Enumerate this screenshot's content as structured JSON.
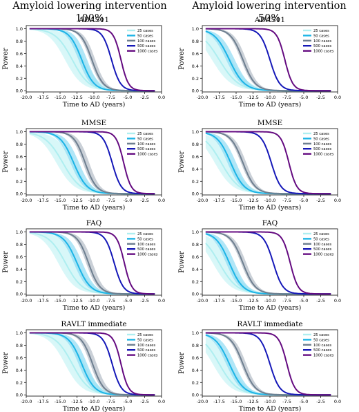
{
  "columns": [
    {
      "title": "Amyloid lowering intervention 100%"
    },
    {
      "title": "Amyloid lowering intervention 50%"
    }
  ],
  "series_styles": [
    {
      "name": "25 cases",
      "color": "#aeeef0",
      "band": "#c8f3f5"
    },
    {
      "name": "50 cases",
      "color": "#1cb4e6",
      "band": "#8fdcf3"
    },
    {
      "name": "100 cases",
      "color": "#6e7f90",
      "band": "#b3bcc6"
    },
    {
      "name": "500 cases",
      "color": "#1518b8",
      "band": "#b8b9ec"
    },
    {
      "name": "1000 cases",
      "color": "#640a80",
      "band": "#d6b8e0"
    }
  ],
  "chart_data": [
    {
      "type": "line",
      "column": "Amyloid lowering intervention 100%",
      "title": "ADAS11",
      "xlabel": "Time to AD (years)",
      "ylabel": "Power",
      "xlim": [
        -20,
        0
      ],
      "ylim": [
        0,
        1
      ],
      "xticks": [
        "-20.0",
        "-17.5",
        "-15.0",
        "-12.5",
        "-10.0",
        "-7.5",
        "-5.0",
        "-2.5",
        "0.0"
      ],
      "yticks": [
        "0.0",
        "0.2",
        "0.4",
        "0.6",
        "0.8",
        "1.0"
      ],
      "legend": "top-right",
      "x_start": -19.5,
      "x_end": -1,
      "series": [
        {
          "name": "25 cases",
          "mid_x": -13.2,
          "steepness": 0.8,
          "band_shift": 1.8
        },
        {
          "name": "50 cases",
          "mid_x": -11.8,
          "steepness": 1.1,
          "band_shift": 0.8
        },
        {
          "name": "100 cases",
          "mid_x": -10.3,
          "steepness": 1.2,
          "band_shift": 0.5
        },
        {
          "name": "500 cases",
          "mid_x": -7.4,
          "steepness": 1.5,
          "band_shift": 0
        },
        {
          "name": "1000 cases",
          "mid_x": -6.0,
          "steepness": 1.8,
          "band_shift": 0
        }
      ]
    },
    {
      "type": "line",
      "column": "Amyloid lowering intervention 50%",
      "title": "ADAS11",
      "xlabel": "Time to AD (years)",
      "ylabel": "Power",
      "xlim": [
        -20,
        0
      ],
      "ylim": [
        0,
        1
      ],
      "xticks": [
        "-20.0",
        "-17.5",
        "-15.0",
        "-12.5",
        "-10.0",
        "-7.5",
        "-5.0",
        "-2.5",
        "0.0"
      ],
      "yticks": [
        "0.0",
        "0.2",
        "0.4",
        "0.6",
        "0.8",
        "1.0"
      ],
      "legend": "top-right",
      "x_start": -19.5,
      "x_end": -1,
      "series": [
        {
          "name": "25 cases",
          "mid_x": -17.5,
          "steepness": 0.7,
          "band_shift": 1.8
        },
        {
          "name": "50 cases",
          "mid_x": -16.0,
          "steepness": 0.9,
          "band_shift": 0.8
        },
        {
          "name": "100 cases",
          "mid_x": -14.0,
          "steepness": 1.1,
          "band_shift": 0.5
        },
        {
          "name": "500 cases",
          "mid_x": -10.0,
          "steepness": 1.4,
          "band_shift": 0
        },
        {
          "name": "1000 cases",
          "mid_x": -7.8,
          "steepness": 1.7,
          "band_shift": 0
        }
      ]
    },
    {
      "type": "line",
      "column": "Amyloid lowering intervention 100%",
      "title": "MMSE",
      "xlabel": "Time to AD (years)",
      "ylabel": "Power",
      "xlim": [
        -20,
        0
      ],
      "ylim": [
        0,
        1
      ],
      "xticks": [
        "-20.0",
        "-17.5",
        "-15.0",
        "-12.5",
        "-10.0",
        "-7.5",
        "-5.0",
        "-2.5",
        "0.0"
      ],
      "yticks": [
        "0.0",
        "0.2",
        "0.4",
        "0.6",
        "0.8",
        "1.0"
      ],
      "legend": "top-right",
      "x_start": -19.5,
      "x_end": -1,
      "series": [
        {
          "name": "25 cases",
          "mid_x": -14.6,
          "steepness": 0.75,
          "band_shift": 1.6
        },
        {
          "name": "50 cases",
          "mid_x": -13.0,
          "steepness": 1.0,
          "band_shift": 0.8
        },
        {
          "name": "100 cases",
          "mid_x": -11.3,
          "steepness": 1.2,
          "band_shift": 0.6
        },
        {
          "name": "500 cases",
          "mid_x": -7.3,
          "steepness": 1.5,
          "band_shift": 0
        },
        {
          "name": "1000 cases",
          "mid_x": -5.6,
          "steepness": 1.8,
          "band_shift": 0
        }
      ]
    },
    {
      "type": "line",
      "column": "Amyloid lowering intervention 50%",
      "title": "MMSE",
      "xlabel": "Time to AD (years)",
      "ylabel": "Power",
      "xlim": [
        -20,
        0
      ],
      "ylim": [
        0,
        1
      ],
      "xticks": [
        "-20.0",
        "-17.5",
        "-15.0",
        "-12.5",
        "-10.0",
        "-7.5",
        "-5.0",
        "-2.5",
        "0.0"
      ],
      "yticks": [
        "0.0",
        "0.2",
        "0.4",
        "0.6",
        "0.8",
        "1.0"
      ],
      "legend": "top-right",
      "x_start": -19.5,
      "x_end": -1,
      "series": [
        {
          "name": "25 cases",
          "mid_x": -17.2,
          "steepness": 0.75,
          "band_shift": 1.6
        },
        {
          "name": "50 cases",
          "mid_x": -15.8,
          "steepness": 1.0,
          "band_shift": 0.8
        },
        {
          "name": "100 cases",
          "mid_x": -14.0,
          "steepness": 1.1,
          "band_shift": 0.5
        },
        {
          "name": "500 cases",
          "mid_x": -9.8,
          "steepness": 1.4,
          "band_shift": 0
        },
        {
          "name": "1000 cases",
          "mid_x": -7.2,
          "steepness": 1.7,
          "band_shift": 0
        }
      ]
    },
    {
      "type": "line",
      "column": "Amyloid lowering intervention 100%",
      "title": "FAQ",
      "xlabel": "Time to AD (years)",
      "ylabel": "Power",
      "xlim": [
        -20,
        0
      ],
      "ylim": [
        0,
        1
      ],
      "xticks": [
        "-20.0",
        "-17.5",
        "-15.0",
        "-12.5",
        "-10.0",
        "-7.5",
        "-5.0",
        "-2.5",
        "0.0"
      ],
      "yticks": [
        "0.0",
        "0.2",
        "0.4",
        "0.6",
        "0.8",
        "1.0"
      ],
      "legend": "top-right",
      "x_start": -19.5,
      "x_end": -1,
      "series": [
        {
          "name": "25 cases",
          "mid_x": -14.2,
          "steepness": 0.8,
          "band_shift": 1.8
        },
        {
          "name": "50 cases",
          "mid_x": -12.5,
          "steepness": 1.0,
          "band_shift": 0.8
        },
        {
          "name": "100 cases",
          "mid_x": -10.8,
          "steepness": 1.2,
          "band_shift": 0.6
        },
        {
          "name": "500 cases",
          "mid_x": -7.0,
          "steepness": 1.5,
          "band_shift": 0
        },
        {
          "name": "1000 cases",
          "mid_x": -5.5,
          "steepness": 1.8,
          "band_shift": 0
        }
      ]
    },
    {
      "type": "line",
      "column": "Amyloid lowering intervention 50%",
      "title": "FAQ",
      "xlabel": "Time to AD (years)",
      "ylabel": "Power",
      "xlim": [
        -20,
        0
      ],
      "ylim": [
        0,
        1
      ],
      "xticks": [
        "-20.0",
        "-17.5",
        "-15.0",
        "-12.5",
        "-10.0",
        "-7.5",
        "-5.0",
        "-2.5",
        "0.0"
      ],
      "yticks": [
        "0.0",
        "0.2",
        "0.4",
        "0.6",
        "0.8",
        "1.0"
      ],
      "legend": "top-right",
      "x_start": -19.5,
      "x_end": -1,
      "series": [
        {
          "name": "25 cases",
          "mid_x": -17.5,
          "steepness": 0.75,
          "band_shift": 1.6
        },
        {
          "name": "50 cases",
          "mid_x": -16.0,
          "steepness": 1.0,
          "band_shift": 0.8
        },
        {
          "name": "100 cases",
          "mid_x": -14.0,
          "steepness": 1.1,
          "band_shift": 0.5
        },
        {
          "name": "500 cases",
          "mid_x": -9.5,
          "steepness": 1.4,
          "band_shift": 0
        },
        {
          "name": "1000 cases",
          "mid_x": -7.0,
          "steepness": 1.7,
          "band_shift": 0
        }
      ]
    },
    {
      "type": "line",
      "column": "Amyloid lowering intervention 100%",
      "title": "RAVLT immediate",
      "xlabel": "Time to AD (years)",
      "ylabel": "Power",
      "xlim": [
        -20,
        0
      ],
      "ylim": [
        0,
        1
      ],
      "xticks": [
        "-20.0",
        "-17.5",
        "-15.0",
        "-12.5",
        "-10.0",
        "-7.5",
        "-5.0",
        "-2.5",
        "0.0"
      ],
      "yticks": [
        "0.0",
        "0.2",
        "0.4",
        "0.6",
        "0.8",
        "1.0"
      ],
      "legend": "top-right",
      "x_start": -19.5,
      "x_end": -1,
      "series": [
        {
          "name": "25 cases",
          "mid_x": -13.2,
          "steepness": 0.8,
          "band_shift": 1.8
        },
        {
          "name": "50 cases",
          "mid_x": -11.8,
          "steepness": 1.05,
          "band_shift": 0.8
        },
        {
          "name": "100 cases",
          "mid_x": -10.2,
          "steepness": 1.2,
          "band_shift": 0.6
        },
        {
          "name": "500 cases",
          "mid_x": -7.3,
          "steepness": 1.5,
          "band_shift": 0
        },
        {
          "name": "1000 cases",
          "mid_x": -6.0,
          "steepness": 1.8,
          "band_shift": 0
        }
      ]
    },
    {
      "type": "line",
      "column": "Amyloid lowering intervention 50%",
      "title": "RAVLT immediate",
      "xlabel": "Time to AD (years)",
      "ylabel": "Power",
      "xlim": [
        -20,
        0
      ],
      "ylim": [
        0,
        1
      ],
      "xticks": [
        "-20.0",
        "-17.5",
        "-15.0",
        "-12.5",
        "-10.0",
        "-7.5",
        "-5.0",
        "-2.5",
        "0.0"
      ],
      "yticks": [
        "0.0",
        "0.2",
        "0.4",
        "0.6",
        "0.8",
        "1.0"
      ],
      "legend": "top-right",
      "x_start": -19.5,
      "x_end": -1,
      "series": [
        {
          "name": "25 cases",
          "mid_x": -17.5,
          "steepness": 0.75,
          "band_shift": 1.6
        },
        {
          "name": "50 cases",
          "mid_x": -16.0,
          "steepness": 0.95,
          "band_shift": 0.8
        },
        {
          "name": "100 cases",
          "mid_x": -14.0,
          "steepness": 1.1,
          "band_shift": 0.5
        },
        {
          "name": "500 cases",
          "mid_x": -10.0,
          "steepness": 1.4,
          "band_shift": 0
        },
        {
          "name": "1000 cases",
          "mid_x": -7.5,
          "steepness": 1.7,
          "band_shift": 0
        }
      ]
    }
  ]
}
